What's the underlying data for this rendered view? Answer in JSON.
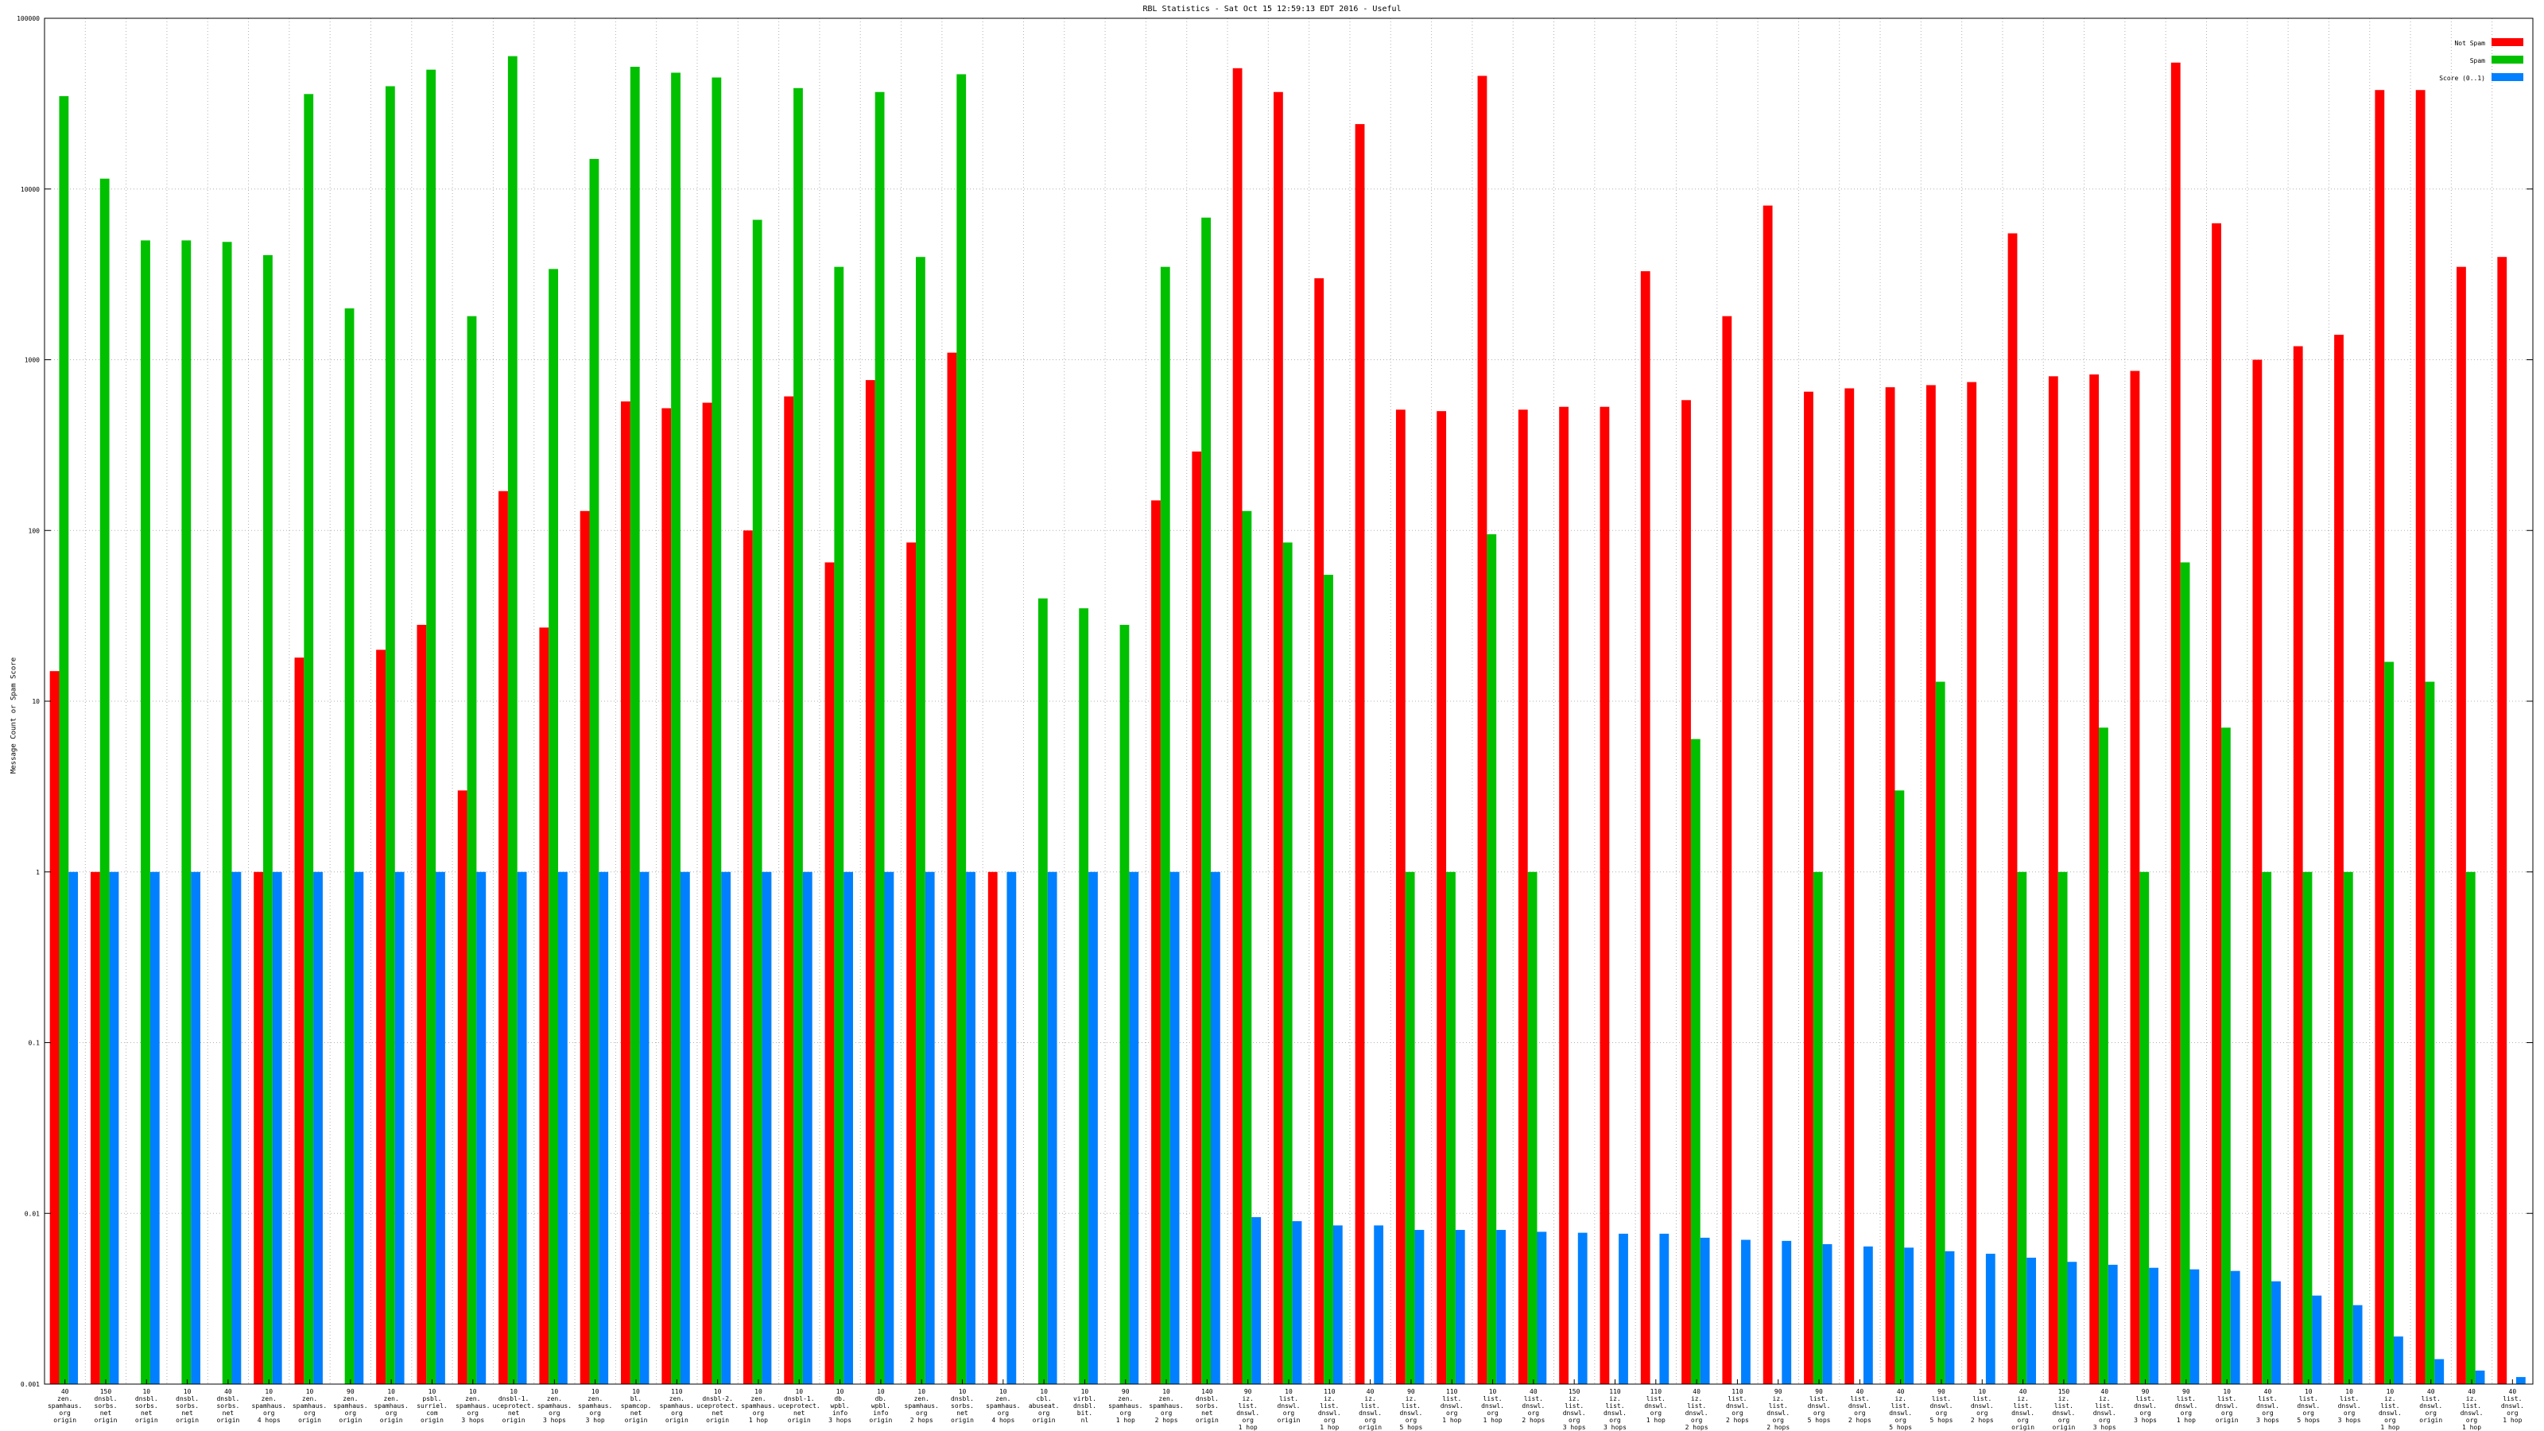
{
  "window_title": "RBL Statistics - Sat Oct 15 12:59:13 EDT 2016 - Useful",
  "chart_data": {
    "type": "bar",
    "title": "RBL Statistics - Sat Oct 15 12:59:13 EDT 2016 - Useful",
    "ylabel": "Message Count or Spam Score",
    "xlabel": "",
    "yscale": "log",
    "ylim": [
      0.001,
      100000
    ],
    "yticks": [
      {
        "value": 0.001,
        "label": "0.001"
      },
      {
        "value": 0.01,
        "label": "0.01"
      },
      {
        "value": 0.1,
        "label": "0.1"
      },
      {
        "value": 1,
        "label": "1"
      },
      {
        "value": 10,
        "label": "10"
      },
      {
        "value": 100,
        "label": "100"
      },
      {
        "value": 1000,
        "label": "1000"
      },
      {
        "value": 10000,
        "label": "10000"
      },
      {
        "value": 100000,
        "label": "100000"
      }
    ],
    "grid": true,
    "legend_position": "top-right",
    "colors": {
      "not_spam": "#ff0000",
      "spam": "#00c000",
      "score": "#0080ff"
    },
    "series": [
      {
        "name": "Not Spam",
        "key": "not_spam"
      },
      {
        "name": "Spam",
        "key": "spam"
      },
      {
        "name": "Score (0..1)",
        "key": "score"
      }
    ],
    "categories": [
      "40\nzen.\nspamhaus.\norg\norigin",
      "150\ndnsbl.\nsorbs.\nnet\norigin",
      "10\ndnsbl.\nsorbs.\nnet\norigin",
      "10\ndnsbl.\nsorbs.\nnet\norigin",
      "40\ndnsbl.\nsorbs.\nnet\norigin",
      "10\nzen.\nspamhaus.\norg\n4 hops",
      "10\nzen.\nspamhaus.\norg\norigin",
      "90\nzen.\nspamhaus.\norg\norigin",
      "10\nzen.\nspamhaus.\norg\norigin",
      "10\npsbl.\nsurriel.\ncom\norigin",
      "10\nzen.\nspamhaus.\norg\n3 hops",
      "10\ndnsbl-1.\nuceprotect.\nnet\norigin",
      "10\nzen.\nspamhaus.\norg\n3 hops",
      "10\nzen.\nspamhaus.\norg\n3 hop",
      "10\nbl.\nspamcop.\nnet\norigin",
      "110\nzen.\nspamhaus.\norg\norigin",
      "10\ndnsbl-2.\nuceprotect.\nnet\norigin",
      "10\nzen.\nspamhaus.\norg\n1 hop",
      "10\ndnsbl-1.\nuceprotect.\nnet\norigin",
      "10\ndb.\nwpbl.\ninfo\n3 hops",
      "10\ndb.\nwpbl.\ninfo\norigin",
      "10\nzen.\nspamhaus.\norg\n2 hops",
      "10\ndnsbl.\nsorbs.\nnet\norigin",
      "10\nzen.\nspamhaus.\norg\n4 hops",
      "10\ncbl.\nabuseat.\norg\norigin",
      "10\nvirbl.\ndnsbl.\nbit.\nnl",
      "90\nzen.\nspamhaus.\norg\n1 hop",
      "10\nzen.\nspamhaus.\norg\n2 hops",
      "140\ndnsbl.\nsorbs.\nnet\norigin",
      "90\niz.\nlist.\ndnswl.\norg\n1 hop",
      "10\nlist.\ndnswl.\norg\norigin",
      "110\niz.\nlist.\ndnswl.\norg\n1 hop",
      "40\niz.\nlist.\ndnswl.\norg\norigin",
      "90\niz.\nlist.\ndnswl.\norg\n5 hops",
      "110\nlist.\ndnswl.\norg\n1 hop",
      "10\nlist.\ndnswl.\norg\n1 hop",
      "40\nlist.\ndnswl.\norg\n2 hops",
      "150\niz.\nlist.\ndnswl.\norg\n3 hops",
      "110\niz.\nlist.\ndnswl.\norg\n3 hops",
      "110\nlist.\ndnswl.\norg\n1 hop",
      "40\niz.\nlist.\ndnswl.\norg\n2 hops",
      "110\nlist.\ndnswl.\norg\n2 hops",
      "90\niz.\nlist.\ndnswl.\norg\n2 hops",
      "90\nlist.\ndnswl.\norg\n5 hops",
      "40\nlist.\ndnswl.\norg\n2 hops",
      "40\niz.\nlist.\ndnswl.\norg\n5 hops",
      "90\nlist.\ndnswl.\norg\n5 hops",
      "10\nlist.\ndnswl.\norg\n2 hops",
      "40\niz.\nlist.\ndnswl.\norg\norigin",
      "150\niz.\nlist.\ndnswl.\norg\norigin",
      "40\niz.\nlist.\ndnswl.\norg\n3 hops",
      "90\nlist.\ndnswl.\norg\n3 hops",
      "90\nlist.\ndnswl.\norg\n1 hop",
      "10\nlist.\ndnswl.\norg\norigin",
      "40\nlist.\ndnswl.\norg\n3 hops",
      "10\nlist.\ndnswl.\norg\n5 hops",
      "10\nlist.\ndnswl.\norg\n3 hops",
      "10\niz.\nlist.\ndnswl.\norg\n1 hop",
      "40\nlist.\ndnswl.\norg\norigin",
      "40\niz.\nlist.\ndnswl.\norg\n1 hop",
      "40\nlist.\ndnswl.\norg\n1 hop"
    ],
    "not_spam": [
      15,
      1,
      null,
      null,
      null,
      1,
      18,
      null,
      20,
      28,
      3,
      170,
      27,
      130,
      570,
      520,
      560,
      100,
      610,
      65,
      760,
      85,
      1100,
      1,
      null,
      null,
      null,
      150,
      290,
      51000,
      37000,
      3000,
      24000,
      510,
      500,
      46000,
      510,
      530,
      530,
      3300,
      580,
      1800,
      8000,
      650,
      680,
      690,
      710,
      740,
      5500,
      800,
      820,
      860,
      55000,
      6300,
      1000,
      1200,
      1400,
      38000,
      38000,
      3500,
      4000
    ],
    "spam": [
      35000,
      11500,
      5000,
      5000,
      4900,
      4100,
      36000,
      2000,
      40000,
      50000,
      1800,
      60000,
      3400,
      15000,
      52000,
      48000,
      45000,
      6600,
      39000,
      3500,
      37000,
      4000,
      47000,
      40,
      35,
      28,
      3500,
      6800,
      130,
      85,
      55,
      1,
      1,
      95,
      1,
      6,
      1,
      3,
      13,
      1,
      1,
      7,
      1,
      65,
      7,
      1,
      1,
      1,
      17,
      13,
      1
    ],
    "spam_index": [
      0,
      1,
      2,
      3,
      4,
      5,
      6,
      7,
      8,
      9,
      10,
      11,
      12,
      13,
      14,
      15,
      16,
      17,
      18,
      19,
      20,
      21,
      22,
      24,
      25,
      26,
      27,
      28,
      29,
      30,
      31,
      33,
      34,
      35,
      36,
      40,
      43,
      45,
      46,
      48,
      49,
      50,
      51,
      52,
      53,
      54,
      55,
      56,
      57,
      58,
      59
    ],
    "score": [
      1,
      1,
      1,
      1,
      1,
      1,
      1,
      1,
      1,
      1,
      1,
      1,
      1,
      1,
      1,
      1,
      1,
      1,
      1,
      1,
      1,
      1,
      1,
      1,
      1,
      1,
      1,
      1,
      1,
      0.0095,
      0.009,
      0.0085,
      0.0085,
      0.008,
      0.008,
      0.008,
      0.0078,
      0.0077,
      0.0076,
      0.0076,
      0.0072,
      0.007,
      0.0069,
      0.0066,
      0.0064,
      0.0063,
      0.006,
      0.0058,
      0.0055,
      0.0052,
      0.005,
      0.0048,
      0.0047,
      0.0046,
      0.004,
      0.0033,
      0.0029,
      0.0019,
      0.0014,
      0.0012,
      0.0011
    ]
  }
}
